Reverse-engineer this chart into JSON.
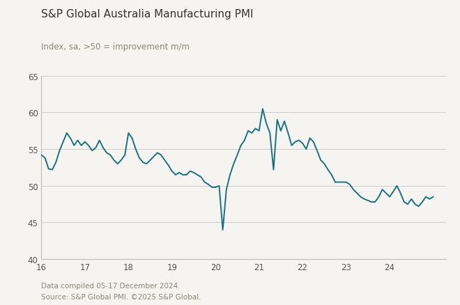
{
  "title": "S&P Global Australia Manufacturing PMI",
  "subtitle": "Index, sa, >50 = improvement m/m",
  "footnote1": "Data compiled 05-17 December 2024.",
  "footnote2": "Source: S&P Global PMI. ©2025 S&P Global.",
  "line_color": "#1a7080",
  "background_color": "#f5f4f0",
  "grid_color": "#cccccc",
  "text_color_title": "#333333",
  "text_color_sub": "#888877",
  "text_color_foot": "#888877",
  "xlim": [
    16.0,
    25.3
  ],
  "ylim": [
    40,
    65
  ],
  "yticks": [
    40,
    45,
    50,
    55,
    60,
    65
  ],
  "xticks": [
    16,
    17,
    18,
    19,
    20,
    21,
    22,
    23,
    24
  ],
  "data": [
    [
      16.0,
      54.2
    ],
    [
      16.083,
      53.8
    ],
    [
      16.167,
      52.3
    ],
    [
      16.25,
      52.2
    ],
    [
      16.333,
      53.2
    ],
    [
      16.417,
      54.8
    ],
    [
      16.5,
      56.0
    ],
    [
      16.583,
      57.2
    ],
    [
      16.667,
      56.5
    ],
    [
      16.75,
      55.5
    ],
    [
      16.833,
      56.2
    ],
    [
      16.917,
      55.5
    ],
    [
      17.0,
      56.0
    ],
    [
      17.083,
      55.5
    ],
    [
      17.167,
      54.8
    ],
    [
      17.25,
      55.2
    ],
    [
      17.333,
      56.2
    ],
    [
      17.417,
      55.2
    ],
    [
      17.5,
      54.5
    ],
    [
      17.583,
      54.2
    ],
    [
      17.667,
      53.5
    ],
    [
      17.75,
      53.0
    ],
    [
      17.833,
      53.5
    ],
    [
      17.917,
      54.2
    ],
    [
      18.0,
      57.2
    ],
    [
      18.083,
      56.5
    ],
    [
      18.167,
      55.0
    ],
    [
      18.25,
      53.8
    ],
    [
      18.333,
      53.2
    ],
    [
      18.417,
      53.0
    ],
    [
      18.5,
      53.5
    ],
    [
      18.583,
      54.0
    ],
    [
      18.667,
      54.5
    ],
    [
      18.75,
      54.2
    ],
    [
      18.833,
      53.5
    ],
    [
      18.917,
      52.8
    ],
    [
      19.0,
      52.0
    ],
    [
      19.083,
      51.5
    ],
    [
      19.167,
      51.8
    ],
    [
      19.25,
      51.5
    ],
    [
      19.333,
      51.5
    ],
    [
      19.417,
      52.0
    ],
    [
      19.5,
      51.8
    ],
    [
      19.583,
      51.5
    ],
    [
      19.667,
      51.2
    ],
    [
      19.75,
      50.5
    ],
    [
      19.833,
      50.2
    ],
    [
      19.917,
      49.8
    ],
    [
      20.0,
      49.8
    ],
    [
      20.083,
      50.0
    ],
    [
      20.167,
      44.0
    ],
    [
      20.25,
      49.5
    ],
    [
      20.333,
      51.5
    ],
    [
      20.417,
      53.0
    ],
    [
      20.5,
      54.2
    ],
    [
      20.583,
      55.5
    ],
    [
      20.667,
      56.2
    ],
    [
      20.75,
      57.5
    ],
    [
      20.833,
      57.2
    ],
    [
      20.917,
      57.8
    ],
    [
      21.0,
      57.5
    ],
    [
      21.083,
      60.5
    ],
    [
      21.167,
      58.5
    ],
    [
      21.25,
      57.2
    ],
    [
      21.333,
      52.2
    ],
    [
      21.417,
      59.0
    ],
    [
      21.5,
      57.5
    ],
    [
      21.583,
      58.8
    ],
    [
      21.667,
      57.2
    ],
    [
      21.75,
      55.5
    ],
    [
      21.833,
      56.0
    ],
    [
      21.917,
      56.2
    ],
    [
      22.0,
      55.8
    ],
    [
      22.083,
      55.0
    ],
    [
      22.167,
      56.5
    ],
    [
      22.25,
      56.0
    ],
    [
      22.333,
      54.8
    ],
    [
      22.417,
      53.5
    ],
    [
      22.5,
      53.0
    ],
    [
      22.583,
      52.2
    ],
    [
      22.667,
      51.5
    ],
    [
      22.75,
      50.5
    ],
    [
      22.833,
      50.5
    ],
    [
      22.917,
      50.5
    ],
    [
      23.0,
      50.5
    ],
    [
      23.083,
      50.2
    ],
    [
      23.167,
      49.5
    ],
    [
      23.25,
      49.0
    ],
    [
      23.333,
      48.5
    ],
    [
      23.417,
      48.2
    ],
    [
      23.5,
      48.0
    ],
    [
      23.583,
      47.8
    ],
    [
      23.667,
      47.8
    ],
    [
      23.75,
      48.5
    ],
    [
      23.833,
      49.5
    ],
    [
      23.917,
      49.0
    ],
    [
      24.0,
      48.5
    ],
    [
      24.083,
      49.2
    ],
    [
      24.167,
      50.0
    ],
    [
      24.25,
      49.0
    ],
    [
      24.333,
      47.8
    ],
    [
      24.417,
      47.5
    ],
    [
      24.5,
      48.2
    ],
    [
      24.583,
      47.5
    ],
    [
      24.667,
      47.2
    ],
    [
      24.75,
      47.8
    ],
    [
      24.833,
      48.5
    ],
    [
      24.917,
      48.2
    ],
    [
      25.0,
      48.5
    ]
  ]
}
